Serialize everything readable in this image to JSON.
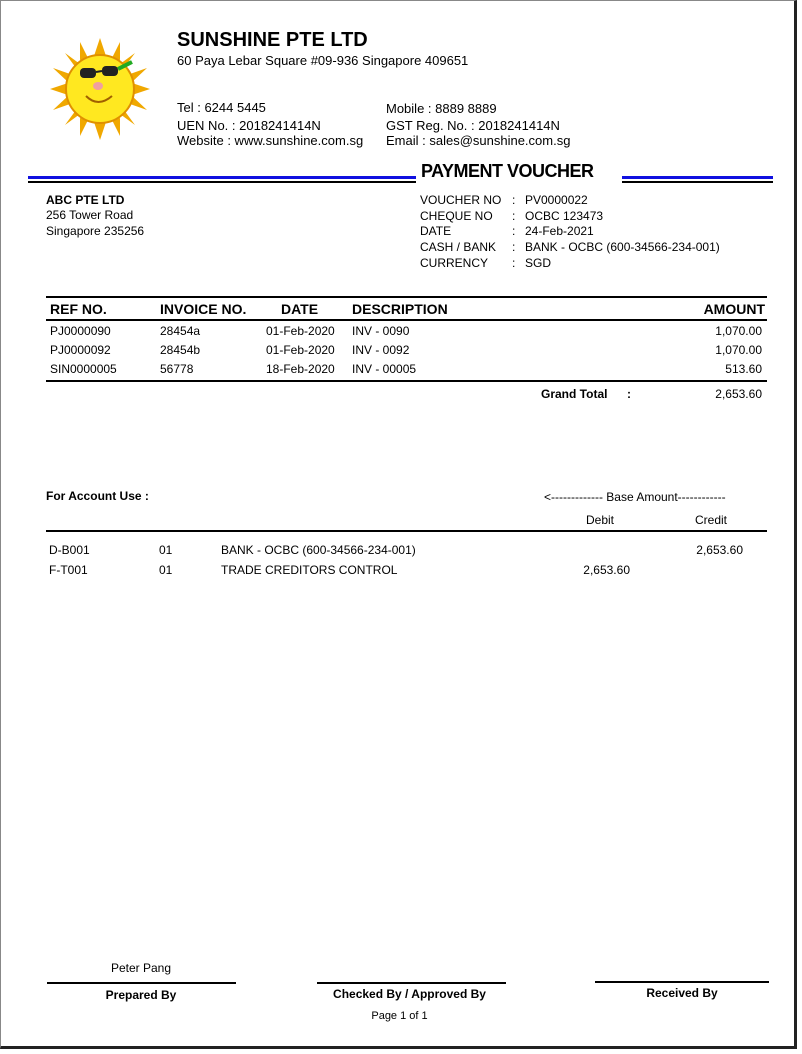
{
  "company": {
    "name": "SUNSHINE PTE LTD",
    "address": "60 Paya Lebar Square #09-936 Singapore 409651",
    "tel": "Tel :  6244 5445",
    "uen": "UEN No. :  2018241414N",
    "website": "Website : www.sunshine.com.sg",
    "mobile": "Mobile :  8889 8889",
    "gst": "GST Reg. No. :  2018241414N",
    "email": "Email : sales@sunshine.com.sg",
    "logo": "sun-with-sunglasses"
  },
  "title": "PAYMENT VOUCHER",
  "accent_color": "#1010e0",
  "payee": {
    "name": "ABC PTE LTD",
    "line1": "256 Tower Road",
    "line2": "Singapore 235256"
  },
  "voucher": [
    {
      "label": "VOUCHER NO",
      "value": "PV0000022"
    },
    {
      "label": "CHEQUE NO",
      "value": "OCBC 123473"
    },
    {
      "label": "DATE",
      "value": "24-Feb-2021"
    },
    {
      "label": "CASH / BANK",
      "value": "BANK - OCBC (600-34566-234-001)"
    },
    {
      "label": "CURRENCY",
      "value": "SGD"
    }
  ],
  "items": {
    "headers": [
      "REF NO.",
      "INVOICE NO.",
      "DATE",
      "DESCRIPTION",
      "AMOUNT"
    ],
    "rows": [
      [
        "PJ0000090",
        "28454a",
        "01-Feb-2020",
        "INV - 0090",
        "1,070.00"
      ],
      [
        "PJ0000092",
        "28454b",
        "01-Feb-2020",
        "INV - 0092",
        "1,070.00"
      ],
      [
        "SIN0000005",
        "56778",
        "18-Feb-2020",
        "INV - 00005",
        "513.60"
      ]
    ],
    "grand_total_label": "Grand Total",
    "grand_total": "2,653.60"
  },
  "account": {
    "title": "For Account Use :",
    "base_amount": "<------------- Base Amount------------",
    "debit": "Debit",
    "credit": "Credit",
    "rows": [
      [
        "D-B001",
        "01",
        "BANK - OCBC (600-34566-234-001)",
        "",
        "2,653.60"
      ],
      [
        "F-T001",
        "01",
        "TRADE CREDITORS CONTROL",
        "2,653.60",
        ""
      ]
    ]
  },
  "footer": {
    "prepared_name": "Peter Pang",
    "prepared_by": "Prepared By",
    "checked_by": "Checked By / Approved By",
    "received_by": "Received By",
    "page": "Page 1 of 1"
  }
}
